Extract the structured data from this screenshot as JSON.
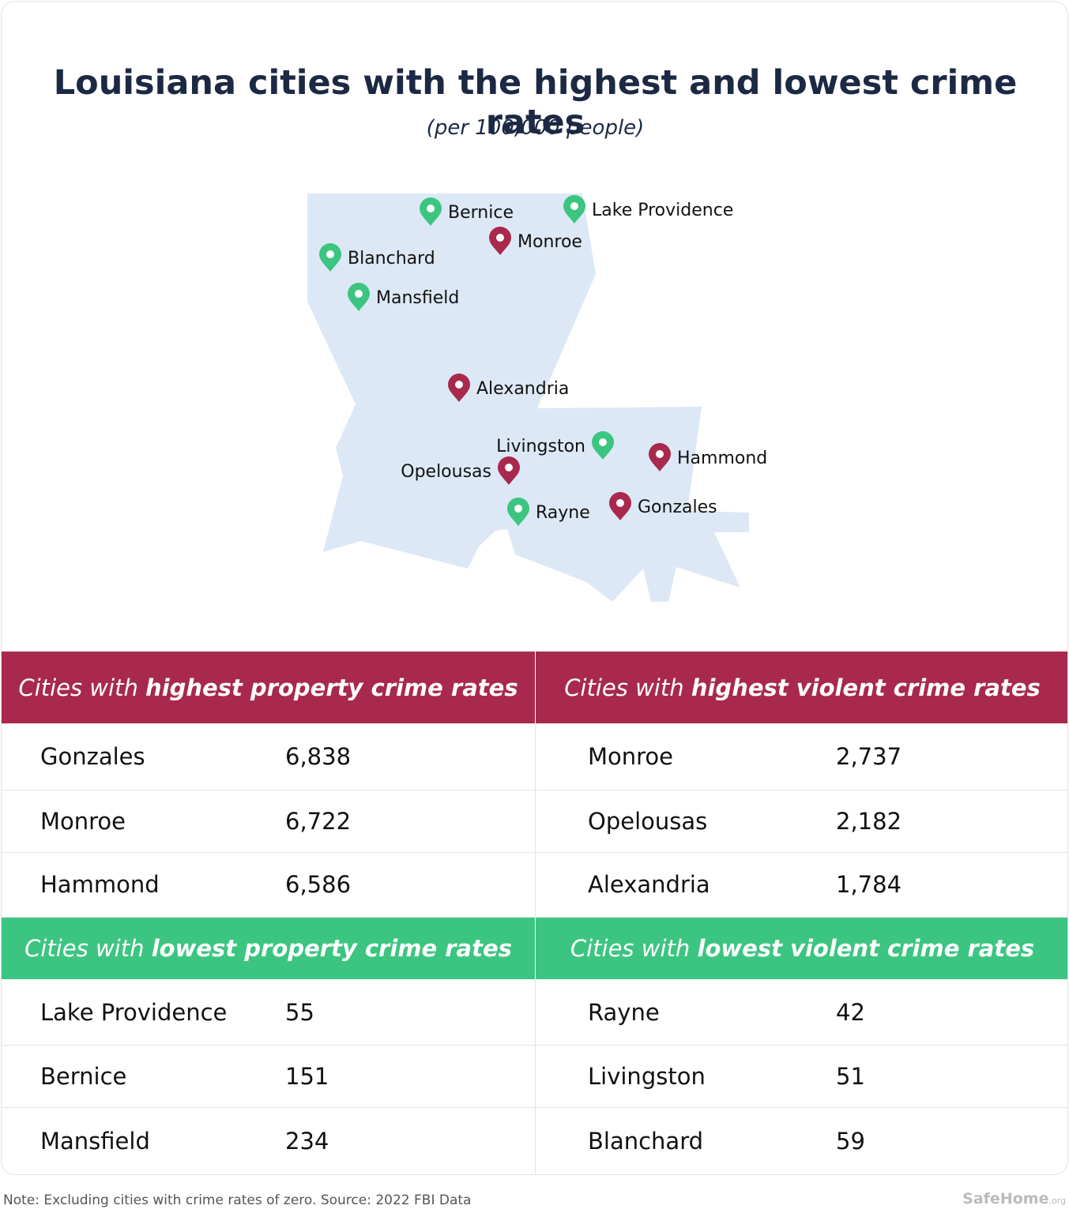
{
  "header": {
    "title": "Louisiana cities with the highest and lowest crime rates",
    "subtitle": "(per 100,000 people)"
  },
  "colors": {
    "high": "#a8294d",
    "low": "#3cc581"
  },
  "map": {
    "pins": [
      {
        "label": "Bernice",
        "group": "low"
      },
      {
        "label": "Lake Providence",
        "group": "low"
      },
      {
        "label": "Monroe",
        "group": "high"
      },
      {
        "label": "Blanchard",
        "group": "low"
      },
      {
        "label": "Mansfield",
        "group": "low"
      },
      {
        "label": "Alexandria",
        "group": "high"
      },
      {
        "label": "Livingston",
        "group": "low"
      },
      {
        "label": "Hammond",
        "group": "high"
      },
      {
        "label": "Opelousas",
        "group": "high"
      },
      {
        "label": "Rayne",
        "group": "low"
      },
      {
        "label": "Gonzales",
        "group": "high"
      }
    ]
  },
  "tables": [
    {
      "group": "high",
      "header_prefix": "Cities with ",
      "header_emphasis": "highest property crime rates",
      "rows": [
        [
          "Gonzales",
          "6,838"
        ],
        [
          "Monroe",
          "6,722"
        ],
        [
          "Hammond",
          "6,586"
        ]
      ]
    },
    {
      "group": "high",
      "header_prefix": "Cities with ",
      "header_emphasis": "highest violent crime rates",
      "rows": [
        [
          "Monroe",
          "2,737"
        ],
        [
          "Opelousas",
          "2,182"
        ],
        [
          "Alexandria",
          "1,784"
        ]
      ]
    },
    {
      "group": "low",
      "header_prefix": "Cities with ",
      "header_emphasis": "lowest property crime rates",
      "rows": [
        [
          "Lake Providence",
          "55"
        ],
        [
          "Bernice",
          "151"
        ],
        [
          "Mansfield",
          "234"
        ]
      ]
    },
    {
      "group": "low",
      "header_prefix": "Cities with ",
      "header_emphasis": "lowest violent crime rates",
      "rows": [
        [
          "Rayne",
          "42"
        ],
        [
          "Livingston",
          "51"
        ],
        [
          "Blanchard",
          "59"
        ]
      ]
    }
  ],
  "footer": {
    "note": "Note: Excluding cities with crime rates of zero. Source: 2022 FBI Data",
    "logo": "SafeHome",
    "logo_suffix": ".org"
  }
}
